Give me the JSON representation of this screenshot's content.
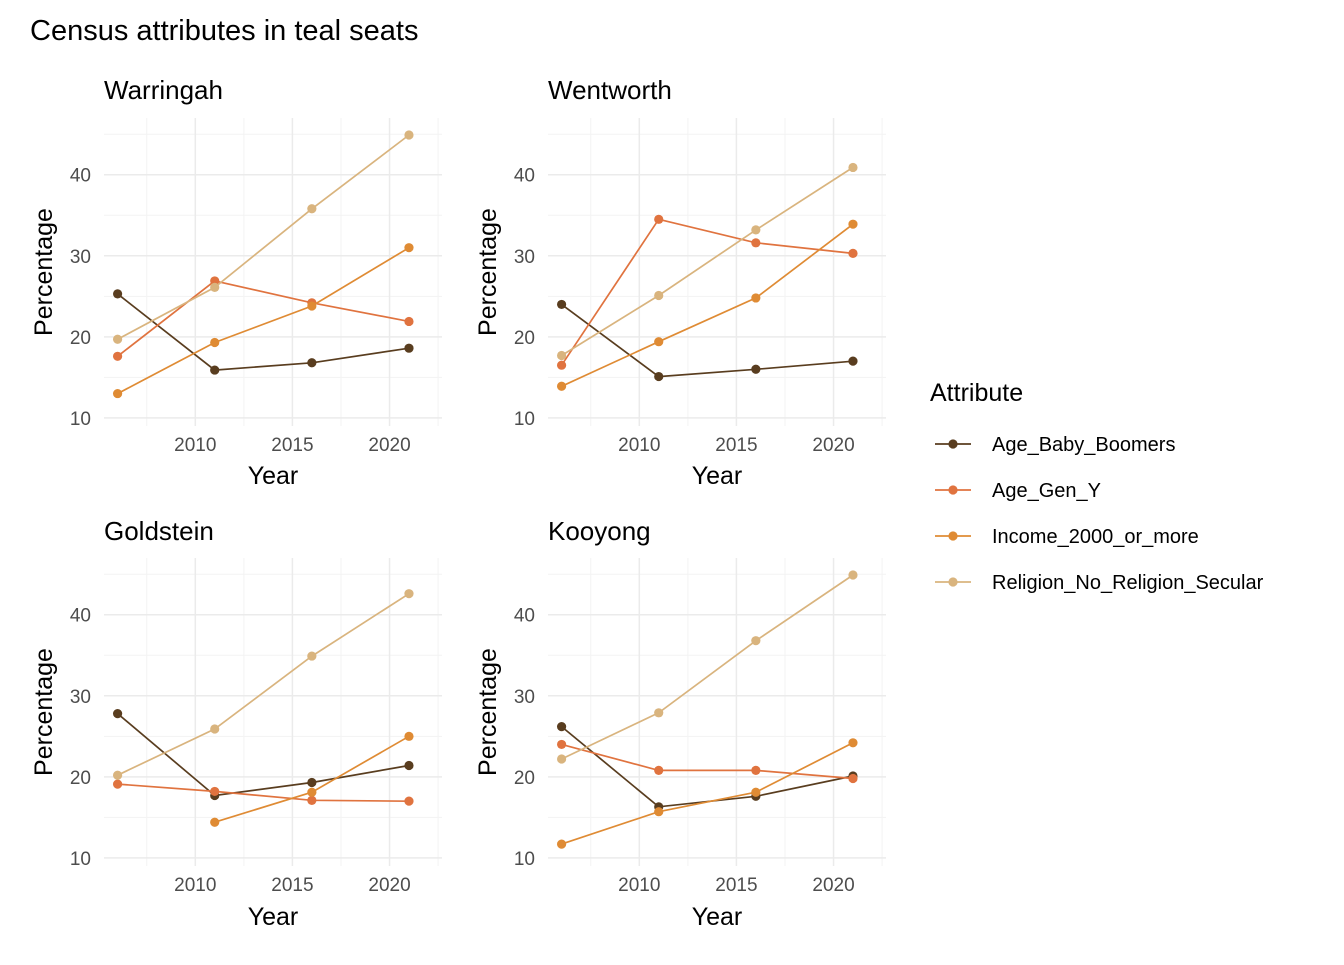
{
  "colors": {
    "Age_Baby_Boomers": "#593d1f",
    "Age_Gen_Y": "#e0733f",
    "Income_2000_or_more": "#df8b34",
    "Religion_No_Religion_Secular": "#d9b47e"
  },
  "chart_data": {
    "type": "line",
    "title": "Census attributes in teal seats",
    "xlabel": "Year",
    "ylabel": "Percentage",
    "xlim": [
      2005.3,
      2022.7
    ],
    "x_ticks": [
      2010,
      2015,
      2020
    ],
    "y_ticks": [
      10,
      20,
      30,
      40
    ],
    "grid": true,
    "legend": {
      "title": "Attribute",
      "placement": "right",
      "entries": [
        "Age_Baby_Boomers",
        "Age_Gen_Y",
        "Income_2000_or_more",
        "Religion_No_Religion_Secular"
      ]
    },
    "panels": [
      {
        "title": "Warringah",
        "ylim": [
          9,
          47
        ],
        "series": [
          {
            "name": "Age_Baby_Boomers",
            "x": [
              2006,
              2011,
              2016,
              2021
            ],
            "values": [
              25.3,
              15.9,
              16.8,
              18.6
            ]
          },
          {
            "name": "Age_Gen_Y",
            "x": [
              2006,
              2011,
              2016,
              2021
            ],
            "values": [
              17.6,
              26.9,
              24.2,
              21.9
            ]
          },
          {
            "name": "Income_2000_or_more",
            "x": [
              2006,
              2011,
              2016,
              2021
            ],
            "values": [
              13.0,
              19.3,
              23.8,
              31.0
            ]
          },
          {
            "name": "Religion_No_Religion_Secular",
            "x": [
              2006,
              2011,
              2016,
              2021
            ],
            "values": [
              19.7,
              26.1,
              35.8,
              44.9
            ]
          }
        ]
      },
      {
        "title": "Wentworth",
        "ylim": [
          9,
          47
        ],
        "series": [
          {
            "name": "Age_Baby_Boomers",
            "x": [
              2006,
              2011,
              2016,
              2021
            ],
            "values": [
              24.0,
              15.1,
              16.0,
              17.0
            ]
          },
          {
            "name": "Age_Gen_Y",
            "x": [
              2006,
              2011,
              2016,
              2021
            ],
            "values": [
              16.5,
              34.5,
              31.6,
              30.3
            ]
          },
          {
            "name": "Income_2000_or_more",
            "x": [
              2006,
              2011,
              2016,
              2021
            ],
            "values": [
              13.9,
              19.4,
              24.8,
              33.9
            ]
          },
          {
            "name": "Religion_No_Religion_Secular",
            "x": [
              2006,
              2011,
              2016,
              2021
            ],
            "values": [
              17.7,
              25.1,
              33.2,
              40.9
            ]
          }
        ]
      },
      {
        "title": "Goldstein",
        "ylim": [
          9,
          47
        ],
        "series": [
          {
            "name": "Age_Baby_Boomers",
            "x": [
              2006,
              2011,
              2016,
              2021
            ],
            "values": [
              27.8,
              17.7,
              19.3,
              21.4
            ]
          },
          {
            "name": "Age_Gen_Y",
            "x": [
              2006,
              2011,
              2016,
              2021
            ],
            "values": [
              19.1,
              18.2,
              17.1,
              17.0
            ]
          },
          {
            "name": "Income_2000_or_more",
            "x": [
              2011,
              2016,
              2021
            ],
            "values": [
              14.4,
              18.1,
              25.0
            ]
          },
          {
            "name": "Religion_No_Religion_Secular",
            "x": [
              2006,
              2011,
              2016,
              2021
            ],
            "values": [
              20.2,
              25.9,
              34.9,
              42.6
            ]
          }
        ]
      },
      {
        "title": "Kooyong",
        "ylim": [
          9,
          47
        ],
        "series": [
          {
            "name": "Age_Baby_Boomers",
            "x": [
              2006,
              2011,
              2016,
              2021
            ],
            "values": [
              26.2,
              16.3,
              17.6,
              20.1
            ]
          },
          {
            "name": "Age_Gen_Y",
            "x": [
              2006,
              2011,
              2016,
              2021
            ],
            "values": [
              24.0,
              20.8,
              20.8,
              19.8
            ]
          },
          {
            "name": "Income_2000_or_more",
            "x": [
              2006,
              2011,
              2016,
              2021
            ],
            "values": [
              11.7,
              15.7,
              18.1,
              24.2
            ]
          },
          {
            "name": "Religion_No_Religion_Secular",
            "x": [
              2006,
              2011,
              2016,
              2021
            ],
            "values": [
              22.2,
              27.9,
              36.8,
              44.9
            ]
          }
        ]
      }
    ]
  }
}
